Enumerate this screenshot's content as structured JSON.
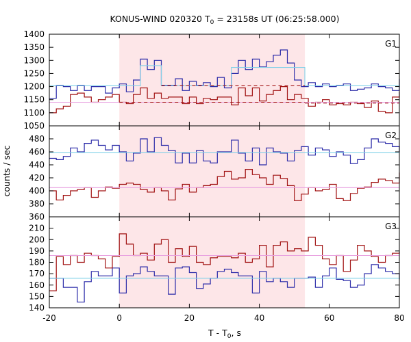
{
  "chart_data": {
    "type": "line",
    "title": "KONUS-WIND 020320 T",
    "title_sub": "0",
    "title_rest": " = 23158s UT (06:25:58.000)",
    "xlabel": "T - T",
    "xlabel_sub": "0",
    "xlabel_rest": ", s",
    "ylabel": "counts / sec",
    "xlim": [
      -20,
      80
    ],
    "x_ticks": [
      -20,
      0,
      20,
      40,
      60,
      80
    ],
    "x_tick_labels": [
      "-20",
      "0",
      "20",
      "40",
      "60",
      "80"
    ],
    "highlight_interval": [
      0,
      53
    ],
    "colors": {
      "blue": "#2a2aa8",
      "red": "#a01010",
      "cyan": "#7fd0e8",
      "pink": "#e8a0e0",
      "highlight": "#fde6e8",
      "dashed": "#a01010"
    },
    "panels": [
      {
        "name": "G1",
        "ylim": [
          1050,
          1400
        ],
        "y_ticks": [
          1050,
          1100,
          1150,
          1200,
          1250,
          1300,
          1350,
          1400
        ],
        "y_tick_labels": [
          "1050",
          "1100",
          "1150",
          "1200",
          "1250",
          "1300",
          "1350",
          "1400"
        ],
        "series": [
          {
            "color": "blue",
            "x": [
              -20,
              -18,
              -16,
              -14,
              -12,
              -10,
              -8,
              -6,
              -4,
              -2,
              0,
              2,
              4,
              6,
              8,
              10,
              12,
              14,
              16,
              18,
              20,
              22,
              24,
              26,
              28,
              30,
              32,
              34,
              36,
              38,
              40,
              42,
              44,
              46,
              48,
              50,
              52,
              54,
              56,
              58,
              60,
              62,
              64,
              66,
              68,
              70,
              72,
              74,
              76,
              78,
              80
            ],
            "y": [
              1155,
              1205,
              1200,
              1185,
              1205,
              1185,
              1200,
              1200,
              1175,
              1195,
              1210,
              1180,
              1225,
              1305,
              1265,
              1300,
              1205,
              1205,
              1230,
              1185,
              1220,
              1205,
              1215,
              1200,
              1235,
              1195,
              1250,
              1300,
              1265,
              1305,
              1275,
              1295,
              1320,
              1340,
              1290,
              1225,
              1200,
              1215,
              1200,
              1210,
              1200,
              1205,
              1210,
              1185,
              1190,
              1195,
              1210,
              1200,
              1195,
              1185,
              1230
            ]
          },
          {
            "color": "red",
            "x": [
              -20,
              -18,
              -16,
              -14,
              -12,
              -10,
              -8,
              -6,
              -4,
              -2,
              0,
              2,
              4,
              6,
              8,
              10,
              12,
              14,
              16,
              18,
              20,
              22,
              24,
              26,
              28,
              30,
              32,
              34,
              36,
              38,
              40,
              42,
              44,
              46,
              48,
              50,
              52,
              54,
              56,
              58,
              60,
              62,
              64,
              66,
              68,
              70,
              72,
              74,
              76,
              78,
              80
            ],
            "y": [
              1100,
              1115,
              1125,
              1170,
              1175,
              1160,
              1140,
              1150,
              1160,
              1170,
              1140,
              1135,
              1170,
              1195,
              1155,
              1175,
              1155,
              1160,
              1160,
              1135,
              1160,
              1135,
              1155,
              1150,
              1160,
              1160,
              1130,
              1195,
              1165,
              1195,
              1145,
              1170,
              1185,
              1200,
              1150,
              1170,
              1155,
              1125,
              1140,
              1150,
              1130,
              1135,
              1130,
              1140,
              1135,
              1120,
              1145,
              1105,
              1100,
              1160,
              1180
            ]
          },
          {
            "color": "cyan",
            "kind": "model",
            "x": [
              -20,
              6,
              6,
              12,
              12,
              32,
              32,
              53,
              53,
              80
            ],
            "y": [
              1203,
              1203,
              1280,
              1280,
              1203,
              1203,
              1273,
              1273,
              1203,
              1203
            ]
          },
          {
            "color": "pink",
            "kind": "level",
            "x": [
              -20,
              80
            ],
            "y": [
              1140,
              1140
            ]
          },
          {
            "color": "dashed",
            "kind": "dashed",
            "x": [
              12,
              53
            ],
            "y": [
              1203,
              1203
            ]
          },
          {
            "color": "dashed",
            "kind": "dashed",
            "x": [
              0,
              53
            ],
            "y": [
              1140,
              1140
            ]
          },
          {
            "color": "dashed",
            "kind": "dashed",
            "x": [
              53,
              80
            ],
            "y": [
              1137,
              1137
            ]
          }
        ]
      },
      {
        "name": "G2",
        "ylim": [
          360,
          500
        ],
        "y_ticks": [
          360,
          380,
          400,
          420,
          440,
          460,
          480
        ],
        "y_tick_labels": [
          "360",
          "380",
          "400",
          "420",
          "440",
          "460",
          "480"
        ],
        "series": [
          {
            "color": "blue",
            "x": [
              -20,
              -18,
              -16,
              -14,
              -12,
              -10,
              -8,
              -6,
              -4,
              -2,
              0,
              2,
              4,
              6,
              8,
              10,
              12,
              14,
              16,
              18,
              20,
              22,
              24,
              26,
              28,
              30,
              32,
              34,
              36,
              38,
              40,
              42,
              44,
              46,
              48,
              50,
              52,
              54,
              56,
              58,
              60,
              62,
              64,
              66,
              68,
              70,
              72,
              74,
              76,
              78,
              80
            ],
            "y": [
              450,
              448,
              453,
              466,
              460,
              473,
              478,
              470,
              463,
              470,
              460,
              446,
              458,
              480,
              460,
              482,
              470,
              462,
              443,
              458,
              443,
              462,
              446,
              443,
              460,
              460,
              478,
              458,
              446,
              466,
              440,
              466,
              460,
              458,
              446,
              462,
              468,
              455,
              466,
              463,
              453,
              460,
              455,
              442,
              448,
              466,
              480,
              475,
              473,
              468,
              460
            ]
          },
          {
            "color": "red",
            "x": [
              -20,
              -18,
              -16,
              -14,
              -12,
              -10,
              -8,
              -6,
              -4,
              -2,
              0,
              2,
              4,
              6,
              8,
              10,
              12,
              14,
              16,
              18,
              20,
              22,
              24,
              26,
              28,
              30,
              32,
              34,
              36,
              38,
              40,
              42,
              44,
              46,
              48,
              50,
              52,
              54,
              56,
              58,
              60,
              62,
              64,
              66,
              68,
              70,
              72,
              74,
              76,
              78,
              80
            ],
            "y": [
              400,
              386,
              393,
              400,
              402,
              405,
              390,
              400,
              406,
              404,
              410,
              412,
              410,
              402,
              398,
              405,
              400,
              386,
              403,
              410,
              398,
              405,
              408,
              410,
              422,
              430,
              418,
              420,
              433,
              425,
              420,
              410,
              424,
              419,
              408,
              385,
              395,
              405,
              400,
              402,
              410,
              388,
              385,
              396,
              404,
              406,
              413,
              418,
              416,
              412,
              428
            ]
          },
          {
            "color": "cyan",
            "kind": "level",
            "x": [
              -20,
              80
            ],
            "y": [
              459,
              459
            ]
          },
          {
            "color": "pink",
            "kind": "level",
            "x": [
              -20,
              80
            ],
            "y": [
              405,
              405
            ]
          }
        ]
      },
      {
        "name": "G3",
        "ylim": [
          140,
          220
        ],
        "y_ticks": [
          140,
          150,
          160,
          170,
          180,
          190,
          200,
          210
        ],
        "y_tick_labels": [
          "140",
          "150",
          "160",
          "170",
          "180",
          "190",
          "200",
          "210"
        ],
        "series": [
          {
            "color": "blue",
            "x": [
              -20,
              -18,
              -16,
              -14,
              -12,
              -10,
              -8,
              -6,
              -4,
              -2,
              0,
              2,
              4,
              6,
              8,
              10,
              12,
              14,
              16,
              18,
              20,
              22,
              24,
              26,
              28,
              30,
              32,
              34,
              36,
              38,
              40,
              42,
              44,
              46,
              48,
              50,
              52,
              54,
              56,
              58,
              60,
              62,
              64,
              66,
              68,
              70,
              72,
              74,
              76,
              78,
              80
            ],
            "y": [
              166,
              166,
              158,
              158,
              145,
              163,
              172,
              168,
              168,
              175,
              153,
              168,
              170,
              176,
              172,
              168,
              168,
              152,
              175,
              176,
              171,
              157,
              161,
              166,
              172,
              174,
              171,
              168,
              168,
              153,
              172,
              163,
              166,
              163,
              158,
              166,
              166,
              167,
              158,
              168,
              175,
              165,
              164,
              158,
              160,
              170,
              178,
              175,
              172,
              170,
              165
            ]
          },
          {
            "color": "red",
            "x": [
              -20,
              -18,
              -16,
              -14,
              -12,
              -10,
              -8,
              -6,
              -4,
              -2,
              0,
              2,
              4,
              6,
              8,
              10,
              12,
              14,
              16,
              18,
              20,
              22,
              24,
              26,
              28,
              30,
              32,
              34,
              36,
              38,
              40,
              42,
              44,
              46,
              48,
              50,
              52,
              54,
              56,
              58,
              60,
              62,
              64,
              66,
              68,
              70,
              72,
              74,
              76,
              78,
              80
            ],
            "y": [
              155,
              185,
              178,
              186,
              180,
              188,
              186,
              183,
              175,
              185,
              205,
              196,
              186,
              188,
              182,
              196,
              200,
              180,
              192,
              185,
              194,
              180,
              178,
              184,
              185,
              185,
              184,
              188,
              180,
              183,
              195,
              176,
              195,
              198,
              190,
              192,
              190,
              202,
              195,
              183,
              178,
              186,
              172,
              182,
              195,
              190,
              185,
              180,
              186,
              188,
              189
            ]
          },
          {
            "color": "cyan",
            "kind": "level",
            "x": [
              -20,
              80
            ],
            "y": [
              166,
              166
            ]
          },
          {
            "color": "pink",
            "kind": "level",
            "x": [
              -20,
              80
            ],
            "y": [
              186,
              186
            ]
          }
        ]
      }
    ]
  }
}
